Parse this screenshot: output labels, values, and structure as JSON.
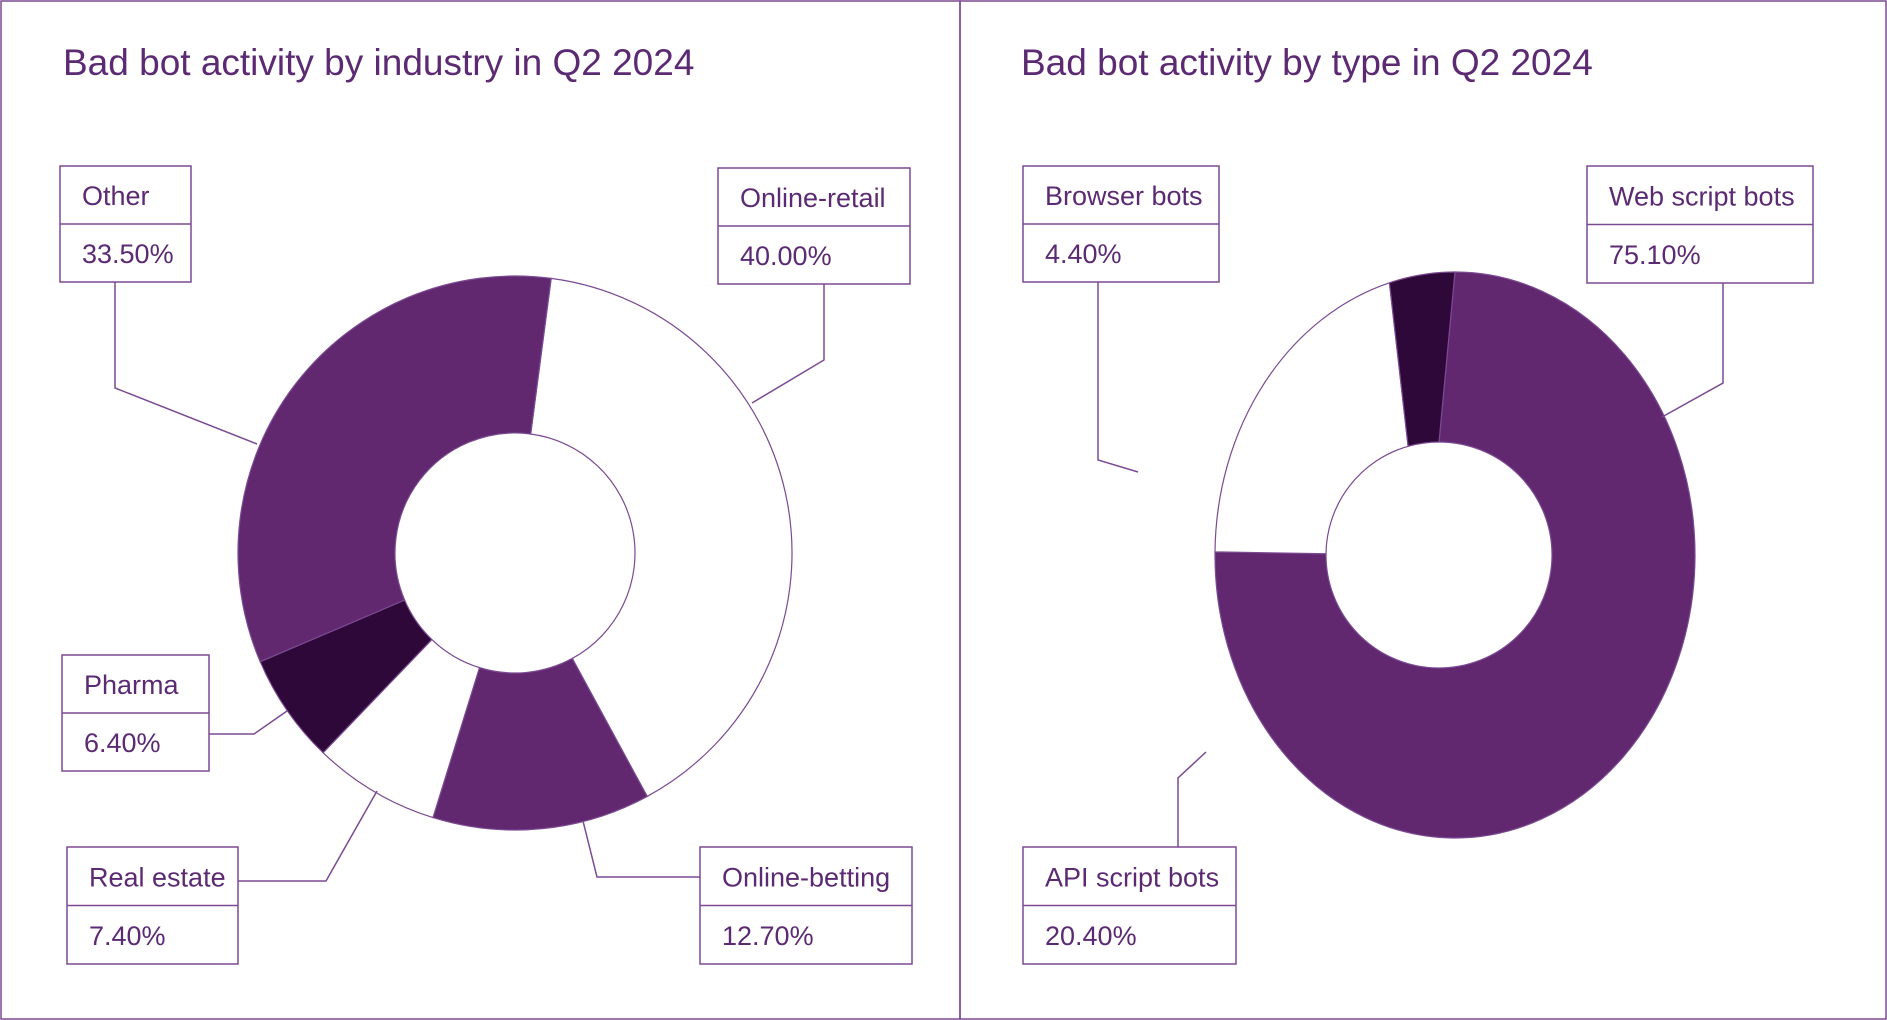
{
  "colors": {
    "primary": "#62286f",
    "dark": "#2e0838",
    "light": "#ffffff",
    "outline": "#7a4a92",
    "text": "#5b2a73"
  },
  "chart_data": [
    {
      "type": "pie",
      "style": "donut",
      "title": "Bad bot activity by industry in Q2 2024",
      "slices": [
        {
          "name": "Online-retail",
          "value": 40.0,
          "label": "40.00%",
          "color": "#ffffff"
        },
        {
          "name": "Online-betting",
          "value": 12.7,
          "label": "12.70%",
          "color": "#62286f"
        },
        {
          "name": "Real estate",
          "value": 7.4,
          "label": "7.40%",
          "color": "#ffffff"
        },
        {
          "name": "Pharma",
          "value": 6.4,
          "label": "6.40%",
          "color": "#2e0838"
        },
        {
          "name": "Other",
          "value": 33.5,
          "label": "33.50%",
          "color": "#62286f"
        }
      ]
    },
    {
      "type": "pie",
      "style": "donut",
      "title": "Bad bot activity by type in Q2 2024",
      "slices": [
        {
          "name": "Web script bots",
          "value": 75.1,
          "label": "75.10%",
          "color": "#62286f"
        },
        {
          "name": "API script bots",
          "value": 20.4,
          "label": "20.40%",
          "color": "#ffffff"
        },
        {
          "name": "Browser bots",
          "value": 4.4,
          "label": "4.40%",
          "color": "#2e0838"
        }
      ]
    }
  ]
}
